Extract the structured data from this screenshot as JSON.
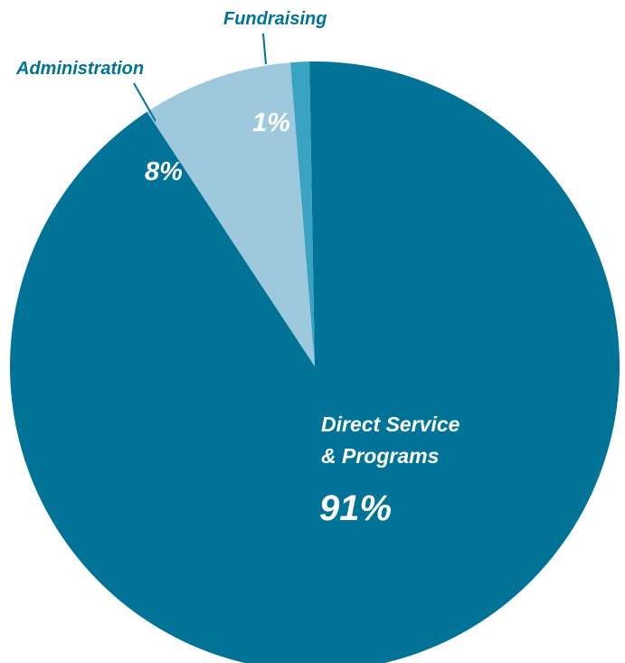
{
  "chart_data": {
    "type": "pie",
    "slices": [
      {
        "name": "Direct Service\n& Programs",
        "value_label": "91%",
        "value": 91,
        "color": "#007396"
      },
      {
        "name": "Administration",
        "value_label": "8%",
        "value": 8,
        "color": "#9ec9dc"
      },
      {
        "name": "Fundraising",
        "value_label": "1%",
        "value": 1,
        "color": "#3aa2c2"
      }
    ],
    "start_angle_deg": 0,
    "direction": "counterclockwise-from-top"
  }
}
